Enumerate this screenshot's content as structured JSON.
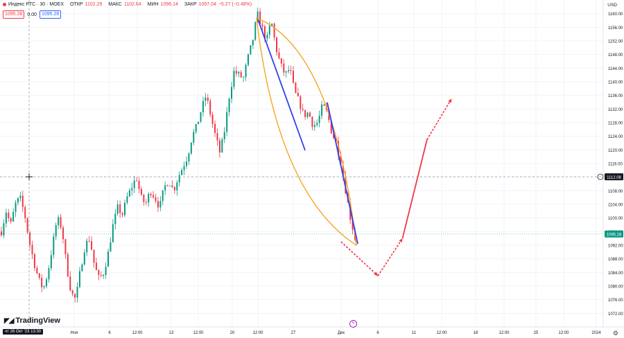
{
  "header": {
    "title": "Индекс РТС · 30 · MOEX",
    "open_label": "ОТКР",
    "open": "1102.29",
    "high_label": "МАКС",
    "high": "1102.64",
    "low_label": "МИН",
    "low": "1096.14",
    "close_label": "ЗАКР",
    "close": "1097.04",
    "change": "−5.27 (−0.48%)",
    "bid": "1095.28",
    "spread": "0.00",
    "ask": "1095.28",
    "currency": "USD"
  },
  "crosshair_date": "чт 26 Окт '23 13:30",
  "brand": "TradingView",
  "colors": {
    "up": "#089981",
    "down": "#f23645",
    "orange": "#f5a623",
    "blue": "#2e3ff0",
    "arrow": "#f23645",
    "accent": "#2962ff"
  },
  "chart_data": {
    "type": "candlestick",
    "ylim": [
      1068,
      1164
    ],
    "y_ticks": [
      1160,
      1156,
      1152,
      1148,
      1144,
      1140,
      1136,
      1132,
      1128,
      1124,
      1120,
      1116,
      1112,
      1108,
      1104,
      1100,
      1096,
      1092,
      1088,
      1084,
      1080,
      1076,
      1072
    ],
    "x_tick_labels": [
      "Ноя",
      "6",
      "12:00",
      "13",
      "12:00",
      "20",
      "12:00",
      "27",
      "Дек",
      "6",
      "11",
      "12:00",
      "18",
      "12:00",
      "25",
      "12:00",
      "2024"
    ],
    "price_tags": {
      "last_price": "1095.28",
      "crosshair_price": "1112.08"
    },
    "close_path": [
      1096,
      1102,
      1098,
      1104,
      1106,
      1101,
      1093,
      1087,
      1082,
      1079,
      1084,
      1092,
      1100,
      1097,
      1086,
      1078,
      1076,
      1085,
      1092,
      1094,
      1086,
      1082,
      1084,
      1090,
      1098,
      1103,
      1101,
      1106,
      1109,
      1112,
      1106,
      1104,
      1108,
      1106,
      1103,
      1109,
      1111,
      1108,
      1112,
      1115,
      1118,
      1124,
      1127,
      1132,
      1136,
      1130,
      1124,
      1119,
      1126,
      1136,
      1143,
      1142,
      1141,
      1147,
      1152,
      1160,
      1156,
      1152,
      1158,
      1150,
      1145,
      1142,
      1144,
      1137,
      1134,
      1130,
      1131,
      1127,
      1128,
      1133,
      1131,
      1125,
      1122,
      1116,
      1108,
      1100,
      1094
    ],
    "forecast": {
      "down_arrow": [
        {
          "date": "Dec 1",
          "value": 1093
        },
        {
          "date": "Dec 4",
          "value": 1083
        }
      ],
      "up_arrow_dashed": [
        {
          "date": "Dec 4",
          "value": 1083
        },
        {
          "date": "Dec 6",
          "value": 1094
        }
      ],
      "up_arrow_solid": [
        {
          "date": "Dec 6",
          "value": 1094
        },
        {
          "date": "Dec 8",
          "value": 1123
        }
      ],
      "up_arrow_dashed_top": [
        {
          "date": "Dec 8",
          "value": 1123
        },
        {
          "date": "Dec 10",
          "value": 1135
        }
      ]
    }
  }
}
